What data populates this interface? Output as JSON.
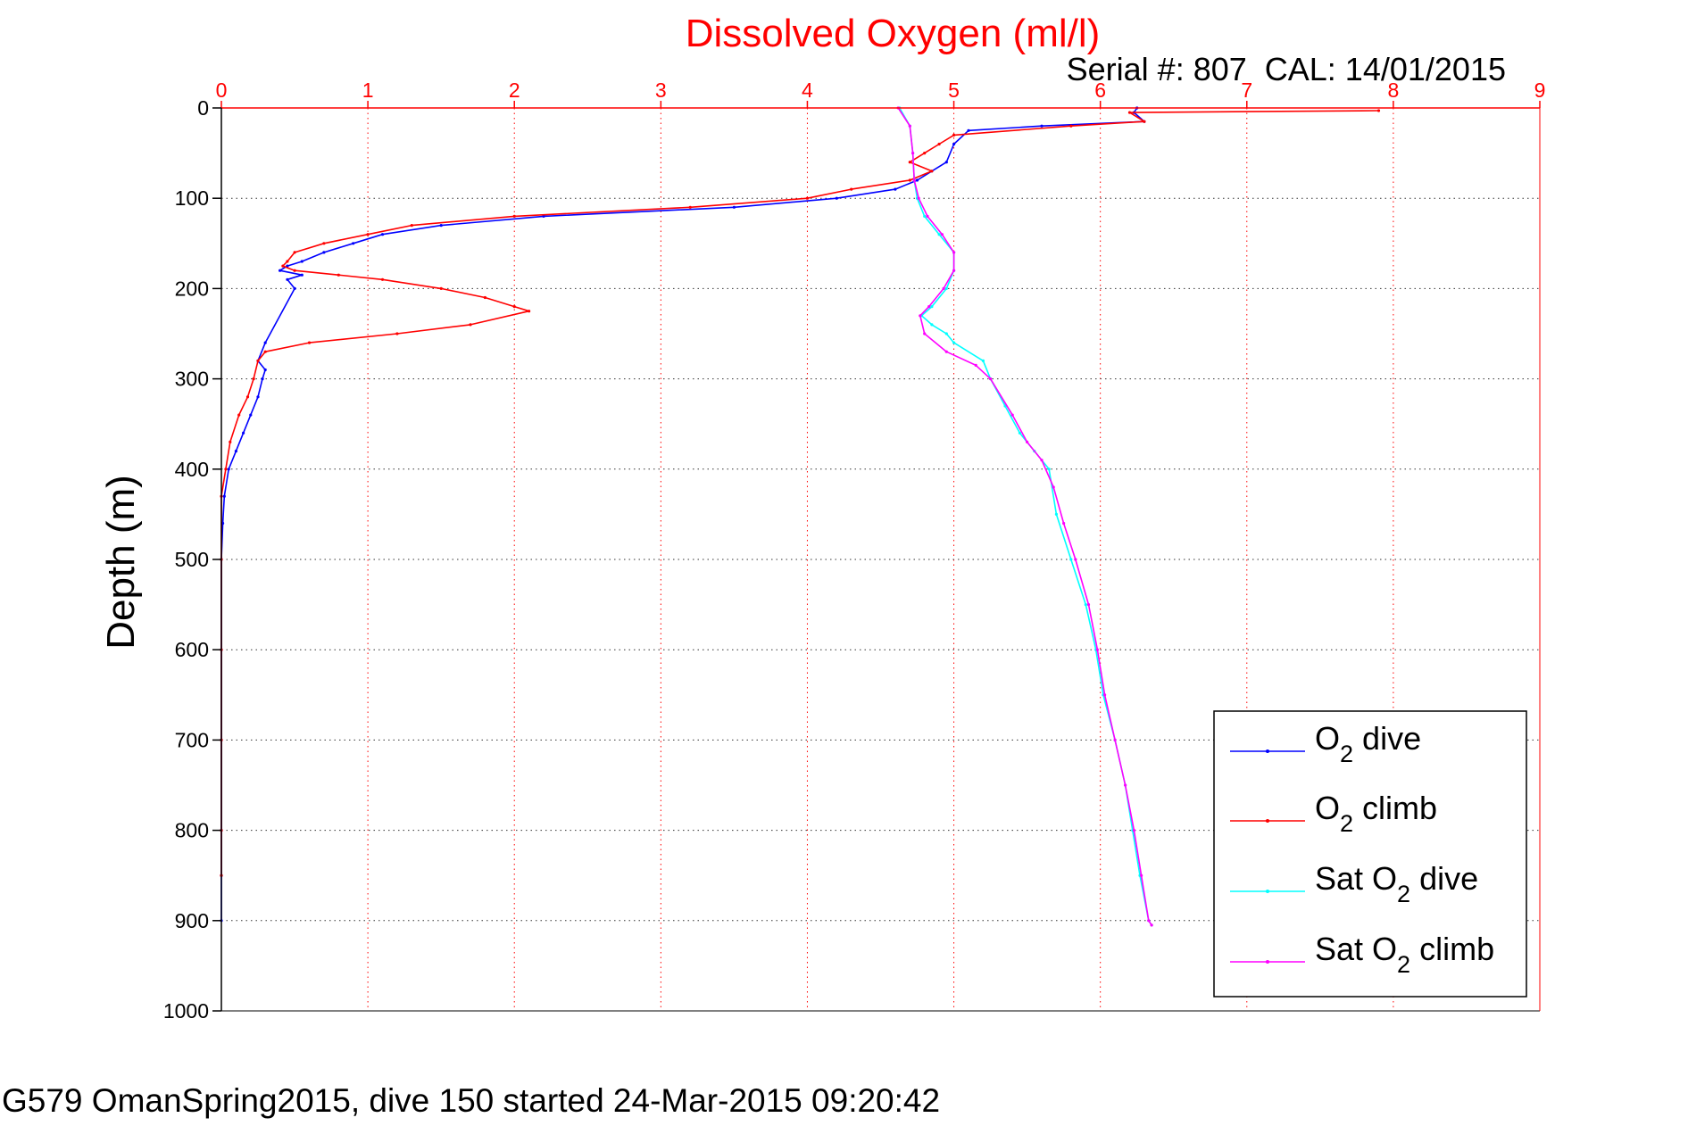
{
  "chart_data": {
    "type": "line",
    "title": "Dissolved Oxygen (ml/l)",
    "subtitle": "Serial #: 807  CAL: 14/01/2015",
    "footer": "G579 OmanSpring2015, dive 150 started 24-Mar-2015 09:20:42",
    "xlabel": "",
    "ylabel": "Depth (m)",
    "xlim": [
      0,
      9
    ],
    "ylim": [
      0,
      1000
    ],
    "y_reversed": true,
    "x_axis_position": "top",
    "x_ticks": [
      0,
      1,
      2,
      3,
      4,
      5,
      6,
      7,
      8,
      9
    ],
    "y_ticks": [
      0,
      100,
      200,
      300,
      400,
      500,
      600,
      700,
      800,
      900,
      1000
    ],
    "grid": true,
    "legend_position": "bottom-right",
    "colors": {
      "title": "#ff0000",
      "x_ticks": "#ff0000",
      "grid": "#ff0000",
      "axis": "#ff0000",
      "text": "#000000"
    },
    "series": [
      {
        "name": "O2 dive",
        "legend": {
          "main": "O",
          "sub": "2",
          "rest": " dive"
        },
        "color": "#0000ff",
        "points": [
          [
            6.25,
            0
          ],
          [
            6.23,
            5
          ],
          [
            6.3,
            15
          ],
          [
            5.6,
            20
          ],
          [
            5.1,
            25
          ],
          [
            5.0,
            40
          ],
          [
            4.95,
            60
          ],
          [
            4.85,
            70
          ],
          [
            4.75,
            80
          ],
          [
            4.6,
            90
          ],
          [
            4.2,
            100
          ],
          [
            3.5,
            110
          ],
          [
            2.2,
            120
          ],
          [
            1.5,
            130
          ],
          [
            1.1,
            140
          ],
          [
            0.9,
            150
          ],
          [
            0.7,
            160
          ],
          [
            0.55,
            170
          ],
          [
            0.45,
            175
          ],
          [
            0.4,
            180
          ],
          [
            0.55,
            185
          ],
          [
            0.45,
            190
          ],
          [
            0.5,
            200
          ],
          [
            0.3,
            260
          ],
          [
            0.25,
            280
          ],
          [
            0.3,
            290
          ],
          [
            0.28,
            300
          ],
          [
            0.25,
            320
          ],
          [
            0.2,
            340
          ],
          [
            0.15,
            360
          ],
          [
            0.1,
            380
          ],
          [
            0.05,
            400
          ],
          [
            0.02,
            430
          ],
          [
            0.01,
            460
          ],
          [
            0,
            500
          ],
          [
            0,
            600
          ],
          [
            0,
            700
          ],
          [
            0,
            800
          ],
          [
            0,
            850
          ],
          [
            0,
            900
          ]
        ]
      },
      {
        "name": "O2 climb",
        "legend": {
          "main": "O",
          "sub": "2",
          "rest": " climb"
        },
        "color": "#ff0000",
        "points": [
          [
            7.9,
            3
          ],
          [
            6.2,
            5
          ],
          [
            6.3,
            15
          ],
          [
            5.8,
            20
          ],
          [
            5.0,
            30
          ],
          [
            4.9,
            40
          ],
          [
            4.8,
            50
          ],
          [
            4.7,
            60
          ],
          [
            4.85,
            70
          ],
          [
            4.7,
            80
          ],
          [
            4.3,
            90
          ],
          [
            4.0,
            100
          ],
          [
            3.2,
            110
          ],
          [
            2.0,
            120
          ],
          [
            1.3,
            130
          ],
          [
            1.0,
            140
          ],
          [
            0.7,
            150
          ],
          [
            0.5,
            160
          ],
          [
            0.45,
            170
          ],
          [
            0.42,
            175
          ],
          [
            0.5,
            180
          ],
          [
            0.8,
            185
          ],
          [
            1.1,
            190
          ],
          [
            1.5,
            200
          ],
          [
            1.8,
            210
          ],
          [
            2.0,
            220
          ],
          [
            2.1,
            225
          ],
          [
            1.7,
            240
          ],
          [
            1.2,
            250
          ],
          [
            0.6,
            260
          ],
          [
            0.3,
            270
          ],
          [
            0.25,
            280
          ],
          [
            0.22,
            300
          ],
          [
            0.18,
            320
          ],
          [
            0.12,
            340
          ],
          [
            0.06,
            370
          ],
          [
            0.03,
            400
          ],
          [
            0,
            430
          ],
          [
            0,
            500
          ],
          [
            0,
            600
          ],
          [
            0,
            700
          ],
          [
            0,
            800
          ],
          [
            0,
            850
          ]
        ]
      },
      {
        "name": "Sat O2 dive",
        "legend": {
          "main": "Sat O",
          "sub": "2",
          "rest": " dive"
        },
        "color": "#00ffff",
        "points": [
          [
            4.63,
            0
          ],
          [
            4.7,
            20
          ],
          [
            4.72,
            50
          ],
          [
            4.73,
            80
          ],
          [
            4.75,
            100
          ],
          [
            4.8,
            120
          ],
          [
            4.9,
            140
          ],
          [
            5.0,
            160
          ],
          [
            5.0,
            180
          ],
          [
            4.95,
            200
          ],
          [
            4.85,
            220
          ],
          [
            4.78,
            230
          ],
          [
            4.85,
            240
          ],
          [
            4.95,
            250
          ],
          [
            5.0,
            260
          ],
          [
            5.2,
            280
          ],
          [
            5.25,
            300
          ],
          [
            5.35,
            330
          ],
          [
            5.45,
            360
          ],
          [
            5.55,
            380
          ],
          [
            5.65,
            400
          ],
          [
            5.7,
            450
          ],
          [
            5.8,
            500
          ],
          [
            5.9,
            550
          ],
          [
            5.97,
            600
          ],
          [
            6.02,
            650
          ],
          [
            6.1,
            700
          ],
          [
            6.17,
            750
          ],
          [
            6.22,
            800
          ],
          [
            6.27,
            850
          ],
          [
            6.33,
            900
          ],
          [
            6.35,
            905
          ]
        ]
      },
      {
        "name": "Sat O2 climb",
        "legend": {
          "main": "Sat O",
          "sub": "2",
          "rest": " climb"
        },
        "color": "#ff00ff",
        "points": [
          [
            4.62,
            0
          ],
          [
            4.7,
            20
          ],
          [
            4.72,
            50
          ],
          [
            4.73,
            80
          ],
          [
            4.76,
            100
          ],
          [
            4.82,
            120
          ],
          [
            4.92,
            140
          ],
          [
            5.0,
            160
          ],
          [
            5.0,
            180
          ],
          [
            4.93,
            200
          ],
          [
            4.83,
            220
          ],
          [
            4.77,
            230
          ],
          [
            4.8,
            250
          ],
          [
            4.95,
            270
          ],
          [
            5.15,
            285
          ],
          [
            5.25,
            300
          ],
          [
            5.4,
            340
          ],
          [
            5.5,
            370
          ],
          [
            5.6,
            390
          ],
          [
            5.68,
            420
          ],
          [
            5.75,
            460
          ],
          [
            5.83,
            500
          ],
          [
            5.92,
            550
          ],
          [
            5.98,
            600
          ],
          [
            6.03,
            650
          ],
          [
            6.1,
            700
          ],
          [
            6.17,
            750
          ],
          [
            6.23,
            800
          ],
          [
            6.28,
            850
          ],
          [
            6.33,
            900
          ],
          [
            6.35,
            905
          ]
        ]
      }
    ]
  }
}
